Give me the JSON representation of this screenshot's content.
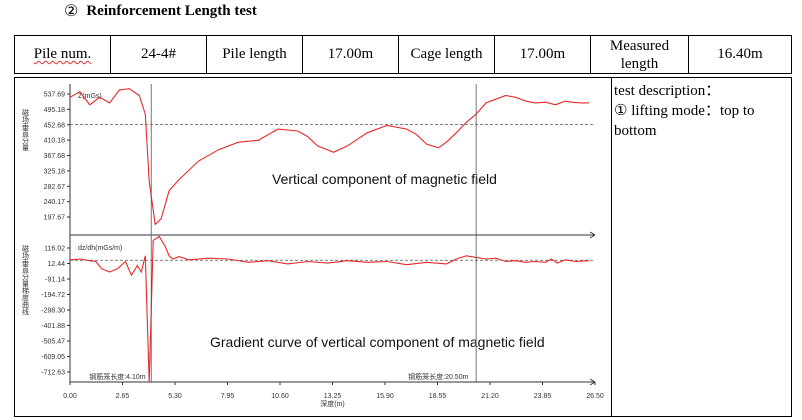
{
  "heading": {
    "number": "②",
    "title": "Reinforcement Length test"
  },
  "info": {
    "pile_num_label": "Pile num.",
    "pile_num": "24-4#",
    "pile_length_label": "Pile length",
    "pile_length": "17.00m",
    "cage_length_label": "Cage length",
    "cage_length": "17.00m",
    "measured_label_1": "Measured",
    "measured_label_2": "length",
    "measured_length": "16.40m"
  },
  "description": {
    "title": "test description：",
    "line": "① lifting mode：top to bottom"
  },
  "colors": {
    "curve": "#e8282a",
    "axis": "#333333",
    "grid": "#555555"
  },
  "chart_data": [
    {
      "type": "line",
      "title": "Vertical component of magnetic field",
      "ylabel": "磁场垂直分量",
      "unit_label": "Z(mGs)",
      "yticks": [
        "537.69",
        "495.18",
        "452.68",
        "410.18",
        "367.68",
        "325.18",
        "282.67",
        "240.17",
        "197.67"
      ],
      "ylim": [
        170,
        550
      ],
      "reference_value": 452.68,
      "series": [
        {
          "x": [
            0.0,
            0.5,
            1.0,
            1.5,
            2.0,
            2.5,
            3.0,
            3.5,
            3.8,
            4.0,
            4.3,
            4.6,
            5.0,
            5.5,
            6.5,
            7.5,
            8.5,
            9.5,
            10.5,
            11.5,
            12.0,
            12.5,
            13.3,
            14.0,
            15.0,
            16.0,
            17.0,
            17.5,
            18.0,
            18.6,
            19.0,
            19.5,
            20.0,
            20.5,
            21.0,
            21.5,
            22.0,
            22.5,
            23.0,
            23.5,
            24.0,
            24.5,
            25.0,
            25.3,
            25.8,
            26.2
          ],
          "y": [
            525,
            540,
            505,
            525,
            510,
            545,
            548,
            530,
            480,
            300,
            185,
            200,
            275,
            305,
            355,
            385,
            405,
            410,
            440,
            435,
            420,
            395,
            378,
            395,
            430,
            450,
            440,
            425,
            400,
            390,
            405,
            430,
            458,
            480,
            510,
            520,
            530,
            525,
            515,
            510,
            512,
            505,
            515,
            512,
            510,
            510
          ]
        }
      ],
      "annotation": "钢筋笼长度:4.10m"
    },
    {
      "type": "line",
      "title": "Gradient curve of vertical component of magnetic field",
      "ylabel": "磁场垂直分量梯度曲线",
      "unit_label": "dz/dh(mGs/m)",
      "yticks": [
        "116.02",
        "12.44",
        "-91.14",
        "-194.72",
        "-298.30",
        "-401.88",
        "-505.47",
        "-609.05",
        "-712.63"
      ],
      "ylim": [
        -740,
        150
      ],
      "reference_value": 12.44,
      "xlabel": "深度(m)",
      "xticks": [
        "0.00",
        "2.65",
        "5.30",
        "7.95",
        "10.60",
        "13.25",
        "15.90",
        "18.55",
        "21.20",
        "23.85",
        "26.50"
      ],
      "xlim": [
        0,
        26.5
      ],
      "series": [
        {
          "x": [
            0.0,
            0.5,
            1.0,
            1.3,
            1.6,
            2.0,
            2.4,
            2.8,
            3.1,
            3.4,
            3.6,
            3.8,
            4.0,
            4.2,
            4.5,
            4.8,
            5.0,
            5.2,
            5.5,
            6.0,
            7.0,
            8.0,
            9.0,
            10.0,
            11.0,
            12.0,
            13.0,
            14.0,
            15.0,
            16.0,
            17.0,
            18.0,
            19.0,
            19.5,
            20.0,
            20.5,
            21.0,
            21.5,
            22.0,
            22.5,
            23.0,
            23.5,
            24.0,
            24.3,
            24.6,
            25.0,
            25.5,
            26.2
          ],
          "y": [
            15,
            20,
            10,
            5,
            -40,
            -60,
            -40,
            5,
            -80,
            -20,
            -60,
            40,
            -740,
            135,
            160,
            100,
            40,
            20,
            35,
            15,
            25,
            20,
            0,
            10,
            -10,
            5,
            -5,
            10,
            0,
            5,
            -15,
            0,
            -10,
            20,
            40,
            30,
            20,
            25,
            5,
            10,
            0,
            5,
            0,
            20,
            -5,
            15,
            5,
            10
          ]
        }
      ],
      "annotation": "钢筋笼长度:20.50m"
    }
  ]
}
